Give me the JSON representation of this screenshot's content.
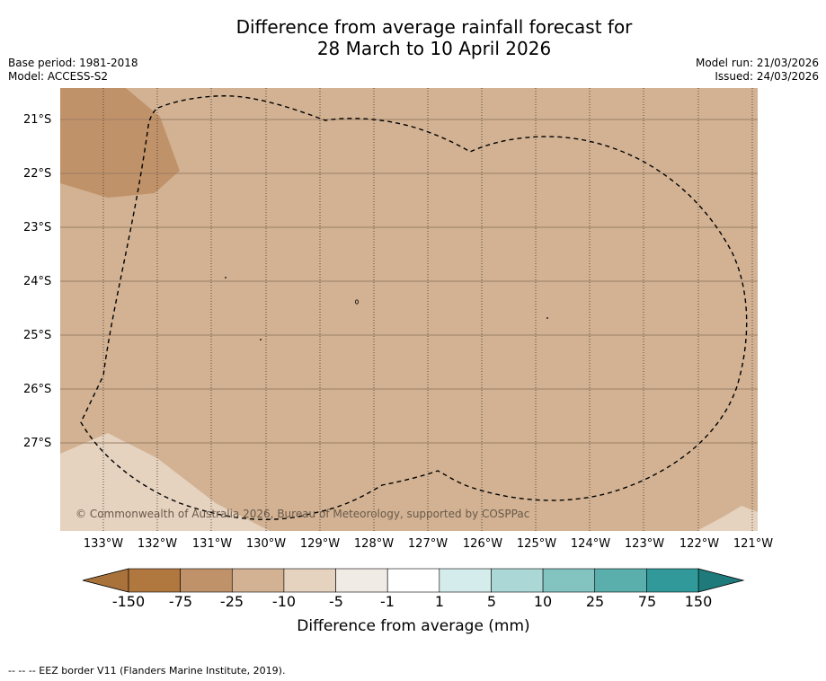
{
  "title": {
    "line1": "Difference from average rainfall forecast for",
    "line2": "28 March to 10 April 2026"
  },
  "meta": {
    "base_period": "Base period: 1981-2018",
    "model": "Model: ACCESS-S2",
    "model_run": "Model run: 21/03/2026",
    "issued": "Issued: 24/03/2026"
  },
  "map": {
    "latitude_labels": [
      "21°S",
      "22°S",
      "23°S",
      "24°S",
      "25°S",
      "26°S",
      "27°S"
    ],
    "longitude_labels": [
      "133°W",
      "132°W",
      "131°W",
      "130°W",
      "129°W",
      "128°W",
      "127°W",
      "126°W",
      "125°W",
      "124°W",
      "123°W",
      "122°W",
      "121°W"
    ],
    "copyright": "© Commonwealth of Australia 2026, Bureau of Meteorology, supported by COSPPac",
    "colors": {
      "dominant": "#d2b293",
      "darker_brown": "#c09269",
      "light": "#e5d2bf",
      "eez_line": "#000000"
    }
  },
  "colorbar": {
    "title": "Difference from average (mm)",
    "ticks": [
      "-150",
      "-75",
      "-25",
      "-10",
      "-5",
      "-1",
      "1",
      "5",
      "10",
      "25",
      "75",
      "150"
    ],
    "colors": [
      "#a9723b",
      "#b0773f",
      "#c09269",
      "#d2b293",
      "#e5d2bf",
      "#f1ebe6",
      "#ffffff",
      "#d4eceb",
      "#abd8d6",
      "#83c3c0",
      "#5aaeac",
      "#31999a",
      "#1f7a7b"
    ]
  },
  "footnote": "--  --  -- EEZ border V11 (Flanders Marine Institute, 2019)."
}
